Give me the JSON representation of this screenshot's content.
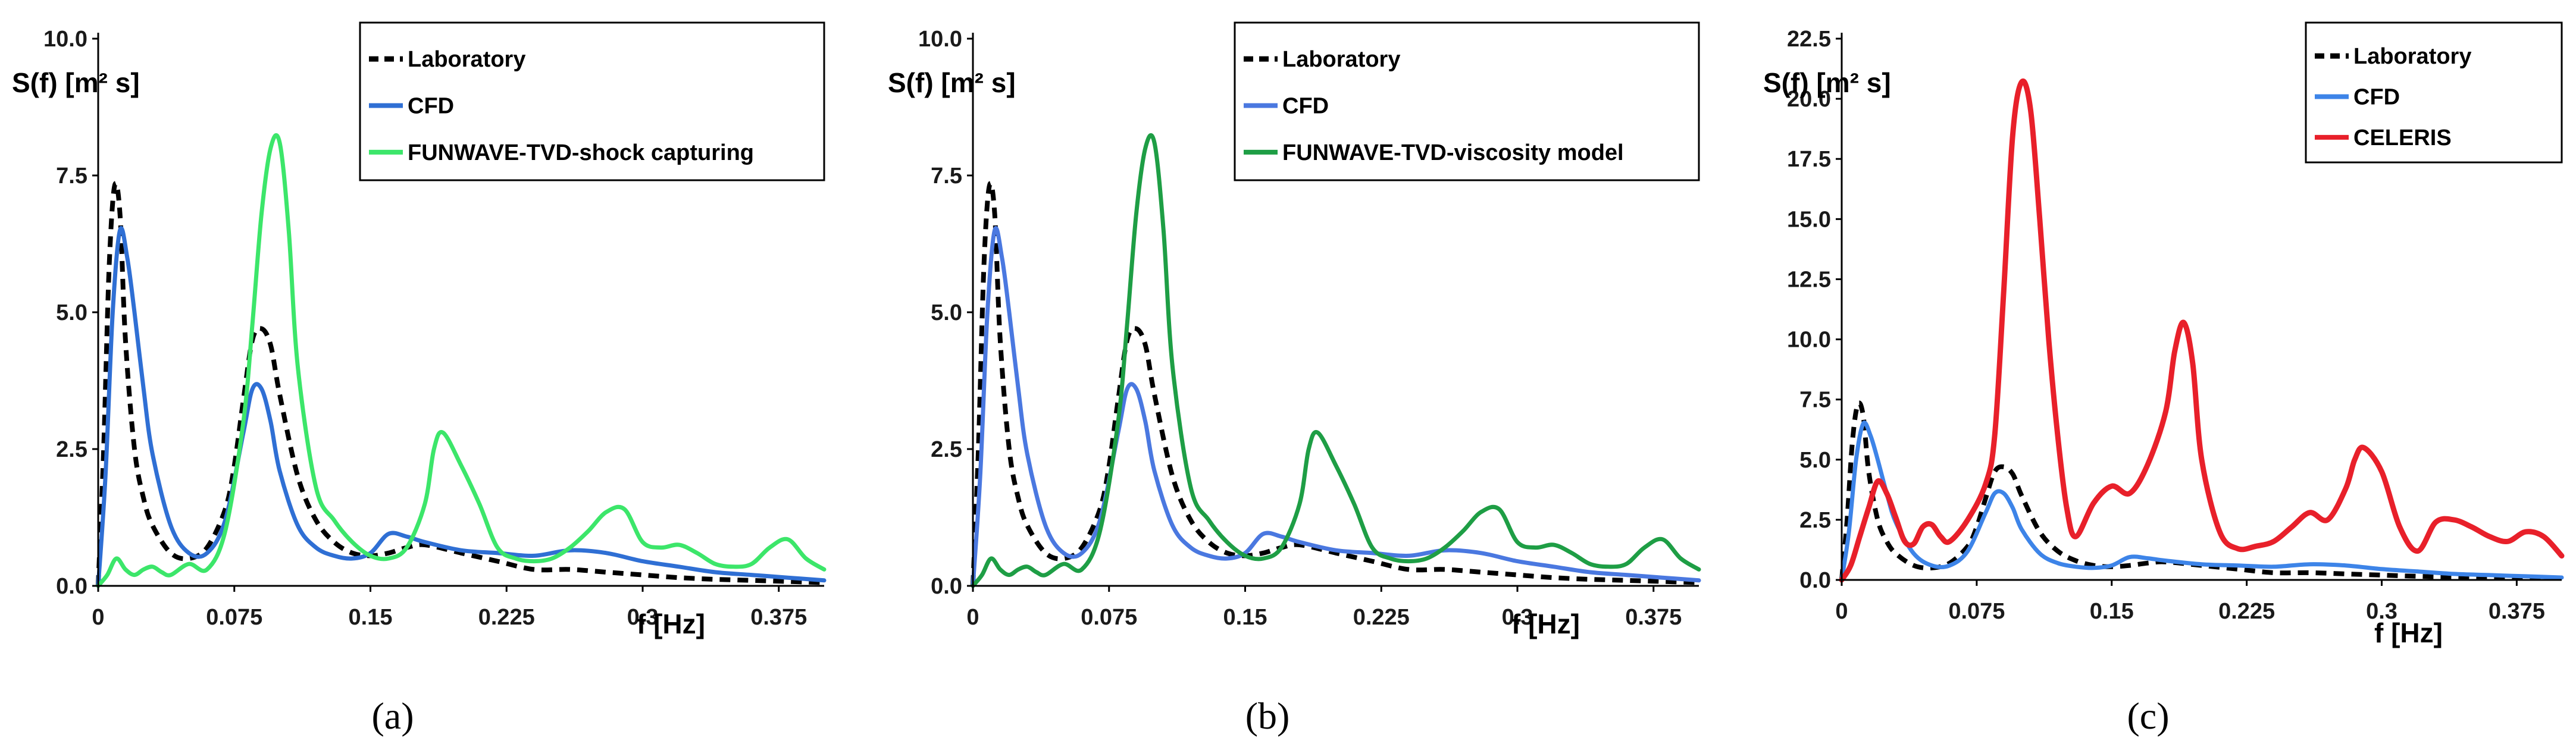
{
  "chart_data": [
    {
      "type": "line",
      "panel_label": "(a)",
      "ylabel": "S(f) [m² s]",
      "xlabel": "f [Hz]",
      "xlim": [
        0,
        0.4
      ],
      "ylim": [
        0,
        10
      ],
      "yticks": [
        "0.0",
        "2.5",
        "5.0",
        "7.5",
        "10.0"
      ],
      "xticks": [
        "0",
        "0.075",
        "0.15",
        "0.225",
        "0.3",
        "0.375"
      ],
      "legend_position": "top-right",
      "series": [
        {
          "name": "Laboratory",
          "color": "#000000",
          "dash": true,
          "x": [
            0,
            0.003,
            0.006,
            0.009,
            0.012,
            0.015,
            0.02,
            0.025,
            0.03,
            0.04,
            0.05,
            0.06,
            0.07,
            0.075,
            0.08,
            0.085,
            0.09,
            0.095,
            0.1,
            0.11,
            0.12,
            0.13,
            0.14,
            0.15,
            0.16,
            0.17,
            0.18,
            0.2,
            0.22,
            0.24,
            0.26,
            0.28,
            0.3,
            0.32,
            0.34,
            0.36,
            0.38,
            0.4
          ],
          "values": [
            0,
            2.5,
            5.8,
            7.3,
            6.8,
            4.5,
            2.5,
            1.6,
            1.1,
            0.6,
            0.5,
            0.7,
            1.4,
            2.2,
            3.4,
            4.5,
            4.7,
            4.4,
            3.5,
            2.0,
            1.2,
            0.8,
            0.6,
            0.55,
            0.6,
            0.7,
            0.75,
            0.6,
            0.45,
            0.3,
            0.3,
            0.25,
            0.2,
            0.15,
            0.12,
            0.1,
            0.08,
            0.06
          ]
        },
        {
          "name": "CFD",
          "color": "#2f6fd4",
          "dash": false,
          "x": [
            0,
            0.004,
            0.008,
            0.012,
            0.016,
            0.02,
            0.025,
            0.03,
            0.04,
            0.05,
            0.06,
            0.07,
            0.08,
            0.085,
            0.09,
            0.095,
            0.1,
            0.11,
            0.12,
            0.13,
            0.14,
            0.15,
            0.16,
            0.17,
            0.18,
            0.2,
            0.22,
            0.24,
            0.26,
            0.28,
            0.3,
            0.32,
            0.34,
            0.36,
            0.38,
            0.4
          ],
          "values": [
            0,
            2.0,
            5.0,
            6.5,
            6.0,
            5.0,
            3.6,
            2.4,
            1.1,
            0.6,
            0.6,
            1.2,
            2.8,
            3.6,
            3.6,
            3.0,
            2.1,
            1.1,
            0.7,
            0.55,
            0.5,
            0.6,
            0.95,
            0.9,
            0.8,
            0.65,
            0.6,
            0.55,
            0.65,
            0.6,
            0.45,
            0.35,
            0.25,
            0.2,
            0.15,
            0.1
          ]
        },
        {
          "name": "FUNWAVE-TVD-shock capturing",
          "color": "#3ce66a",
          "dash": false,
          "x": [
            0,
            0.005,
            0.01,
            0.015,
            0.02,
            0.025,
            0.03,
            0.035,
            0.04,
            0.05,
            0.06,
            0.07,
            0.08,
            0.085,
            0.09,
            0.095,
            0.1,
            0.105,
            0.11,
            0.12,
            0.13,
            0.14,
            0.15,
            0.16,
            0.17,
            0.18,
            0.185,
            0.19,
            0.2,
            0.21,
            0.22,
            0.23,
            0.24,
            0.25,
            0.26,
            0.27,
            0.28,
            0.29,
            0.3,
            0.31,
            0.32,
            0.33,
            0.34,
            0.35,
            0.36,
            0.37,
            0.38,
            0.39,
            0.4
          ],
          "values": [
            0,
            0.2,
            0.5,
            0.3,
            0.2,
            0.3,
            0.35,
            0.25,
            0.2,
            0.4,
            0.3,
            1.0,
            3.0,
            4.8,
            6.8,
            8.0,
            8.1,
            6.5,
            4.0,
            1.8,
            1.2,
            0.8,
            0.55,
            0.5,
            0.7,
            1.5,
            2.5,
            2.8,
            2.2,
            1.5,
            0.7,
            0.5,
            0.45,
            0.5,
            0.7,
            1.0,
            1.35,
            1.4,
            0.8,
            0.7,
            0.75,
            0.6,
            0.4,
            0.35,
            0.4,
            0.7,
            0.85,
            0.5,
            0.3
          ]
        }
      ]
    },
    {
      "type": "line",
      "panel_label": "(b)",
      "ylabel": "S(f) [m² s]",
      "xlabel": "f [Hz]",
      "xlim": [
        0,
        0.4
      ],
      "ylim": [
        0,
        10
      ],
      "yticks": [
        "0.0",
        "2.5",
        "5.0",
        "7.5",
        "10.0"
      ],
      "xticks": [
        "0",
        "0.075",
        "0.15",
        "0.225",
        "0.3",
        "0.375"
      ],
      "legend_position": "top-right",
      "series": [
        {
          "name": "Laboratory",
          "color": "#000000",
          "dash": true,
          "x": [
            0,
            0.003,
            0.006,
            0.009,
            0.012,
            0.015,
            0.02,
            0.025,
            0.03,
            0.04,
            0.05,
            0.06,
            0.07,
            0.075,
            0.08,
            0.085,
            0.09,
            0.095,
            0.1,
            0.11,
            0.12,
            0.13,
            0.14,
            0.15,
            0.16,
            0.17,
            0.18,
            0.2,
            0.22,
            0.24,
            0.26,
            0.28,
            0.3,
            0.32,
            0.34,
            0.36,
            0.38,
            0.4
          ],
          "values": [
            0,
            2.5,
            5.8,
            7.3,
            6.8,
            4.5,
            2.5,
            1.6,
            1.1,
            0.6,
            0.5,
            0.7,
            1.4,
            2.2,
            3.4,
            4.5,
            4.7,
            4.4,
            3.5,
            2.0,
            1.2,
            0.8,
            0.6,
            0.55,
            0.6,
            0.7,
            0.75,
            0.6,
            0.45,
            0.3,
            0.3,
            0.25,
            0.2,
            0.15,
            0.12,
            0.1,
            0.08,
            0.06
          ]
        },
        {
          "name": "CFD",
          "color": "#4a78e0",
          "dash": false,
          "x": [
            0,
            0.004,
            0.008,
            0.012,
            0.016,
            0.02,
            0.025,
            0.03,
            0.04,
            0.05,
            0.06,
            0.07,
            0.08,
            0.085,
            0.09,
            0.095,
            0.1,
            0.11,
            0.12,
            0.13,
            0.14,
            0.15,
            0.16,
            0.17,
            0.18,
            0.2,
            0.22,
            0.24,
            0.26,
            0.28,
            0.3,
            0.32,
            0.34,
            0.36,
            0.38,
            0.4
          ],
          "values": [
            0,
            2.0,
            5.0,
            6.5,
            6.0,
            5.0,
            3.6,
            2.4,
            1.1,
            0.6,
            0.6,
            1.2,
            2.8,
            3.6,
            3.6,
            3.0,
            2.1,
            1.1,
            0.7,
            0.55,
            0.5,
            0.6,
            0.95,
            0.9,
            0.8,
            0.65,
            0.6,
            0.55,
            0.65,
            0.6,
            0.45,
            0.35,
            0.25,
            0.2,
            0.15,
            0.1
          ]
        },
        {
          "name": "FUNWAVE-TVD-viscosity model",
          "color": "#1e9e45",
          "dash": false,
          "x": [
            0,
            0.005,
            0.01,
            0.015,
            0.02,
            0.025,
            0.03,
            0.035,
            0.04,
            0.05,
            0.06,
            0.07,
            0.08,
            0.085,
            0.09,
            0.095,
            0.1,
            0.105,
            0.11,
            0.12,
            0.13,
            0.14,
            0.15,
            0.16,
            0.17,
            0.18,
            0.185,
            0.19,
            0.2,
            0.21,
            0.22,
            0.23,
            0.24,
            0.25,
            0.26,
            0.27,
            0.28,
            0.29,
            0.3,
            0.31,
            0.32,
            0.33,
            0.34,
            0.35,
            0.36,
            0.37,
            0.38,
            0.39,
            0.4
          ],
          "values": [
            0,
            0.2,
            0.5,
            0.3,
            0.2,
            0.3,
            0.35,
            0.25,
            0.2,
            0.4,
            0.3,
            1.0,
            3.0,
            4.8,
            6.8,
            8.0,
            8.1,
            6.5,
            4.0,
            1.8,
            1.2,
            0.8,
            0.55,
            0.5,
            0.7,
            1.5,
            2.5,
            2.8,
            2.2,
            1.5,
            0.7,
            0.5,
            0.45,
            0.5,
            0.7,
            1.0,
            1.35,
            1.4,
            0.8,
            0.7,
            0.75,
            0.6,
            0.4,
            0.35,
            0.4,
            0.7,
            0.85,
            0.5,
            0.3
          ]
        }
      ]
    },
    {
      "type": "line",
      "panel_label": "(c)",
      "ylabel": "S(f) [m² s]",
      "xlabel": "f [Hz]",
      "xlim": [
        0,
        0.4
      ],
      "ylim": [
        0,
        22.5
      ],
      "yticks": [
        "0.0",
        "2.5",
        "5.0",
        "7.5",
        "10.0",
        "12.5",
        "15.0",
        "17.5",
        "20.0",
        "22.5"
      ],
      "xticks": [
        "0",
        "0.075",
        "0.15",
        "0.225",
        "0.3",
        "0.375"
      ],
      "legend_position": "top-right",
      "series": [
        {
          "name": "Laboratory",
          "color": "#000000",
          "dash": true,
          "x": [
            0,
            0.003,
            0.006,
            0.009,
            0.012,
            0.015,
            0.02,
            0.025,
            0.03,
            0.04,
            0.05,
            0.06,
            0.07,
            0.075,
            0.08,
            0.085,
            0.09,
            0.095,
            0.1,
            0.11,
            0.12,
            0.13,
            0.14,
            0.15,
            0.16,
            0.17,
            0.18,
            0.2,
            0.22,
            0.24,
            0.26,
            0.28,
            0.3,
            0.32,
            0.34,
            0.36,
            0.38,
            0.4
          ],
          "values": [
            0,
            2.5,
            5.8,
            7.3,
            6.8,
            4.5,
            2.5,
            1.6,
            1.1,
            0.6,
            0.5,
            0.7,
            1.4,
            2.2,
            3.4,
            4.5,
            4.7,
            4.4,
            3.5,
            2.0,
            1.2,
            0.8,
            0.6,
            0.55,
            0.6,
            0.7,
            0.75,
            0.6,
            0.45,
            0.3,
            0.3,
            0.25,
            0.2,
            0.15,
            0.12,
            0.1,
            0.08,
            0.06
          ]
        },
        {
          "name": "CFD",
          "color": "#3d84e8",
          "dash": false,
          "x": [
            0,
            0.004,
            0.008,
            0.012,
            0.016,
            0.02,
            0.025,
            0.03,
            0.04,
            0.05,
            0.06,
            0.07,
            0.08,
            0.085,
            0.09,
            0.095,
            0.1,
            0.11,
            0.12,
            0.13,
            0.14,
            0.15,
            0.16,
            0.17,
            0.18,
            0.2,
            0.22,
            0.24,
            0.26,
            0.28,
            0.3,
            0.32,
            0.34,
            0.36,
            0.38,
            0.4
          ],
          "values": [
            0,
            2.0,
            5.0,
            6.5,
            6.0,
            5.0,
            3.6,
            2.4,
            1.1,
            0.6,
            0.6,
            1.2,
            2.8,
            3.6,
            3.6,
            3.0,
            2.1,
            1.1,
            0.7,
            0.55,
            0.5,
            0.6,
            0.95,
            0.9,
            0.8,
            0.65,
            0.6,
            0.55,
            0.65,
            0.6,
            0.45,
            0.35,
            0.25,
            0.2,
            0.15,
            0.1
          ]
        },
        {
          "name": "CELERIS",
          "color": "#e8202a",
          "dash": false,
          "x": [
            0,
            0.005,
            0.01,
            0.015,
            0.02,
            0.025,
            0.03,
            0.035,
            0.04,
            0.045,
            0.05,
            0.055,
            0.06,
            0.07,
            0.08,
            0.085,
            0.09,
            0.095,
            0.1,
            0.105,
            0.11,
            0.115,
            0.12,
            0.125,
            0.13,
            0.14,
            0.15,
            0.16,
            0.17,
            0.18,
            0.185,
            0.19,
            0.195,
            0.2,
            0.21,
            0.22,
            0.23,
            0.24,
            0.25,
            0.26,
            0.27,
            0.28,
            0.285,
            0.29,
            0.3,
            0.31,
            0.32,
            0.33,
            0.34,
            0.35,
            0.36,
            0.37,
            0.38,
            0.39,
            0.4
          ],
          "values": [
            0,
            0.6,
            1.8,
            3.0,
            4.1,
            3.6,
            2.6,
            1.6,
            1.5,
            2.2,
            2.3,
            1.8,
            1.6,
            2.5,
            4.0,
            6.0,
            12.0,
            18.5,
            20.7,
            19.5,
            15.0,
            10.0,
            6.0,
            3.0,
            1.8,
            3.2,
            3.9,
            3.6,
            4.8,
            7.0,
            9.5,
            10.7,
            9.0,
            5.0,
            2.0,
            1.3,
            1.4,
            1.6,
            2.2,
            2.8,
            2.5,
            3.8,
            5.0,
            5.5,
            4.5,
            2.2,
            1.2,
            2.4,
            2.5,
            2.2,
            1.8,
            1.6,
            2.0,
            1.8,
            1.0
          ]
        }
      ]
    }
  ]
}
